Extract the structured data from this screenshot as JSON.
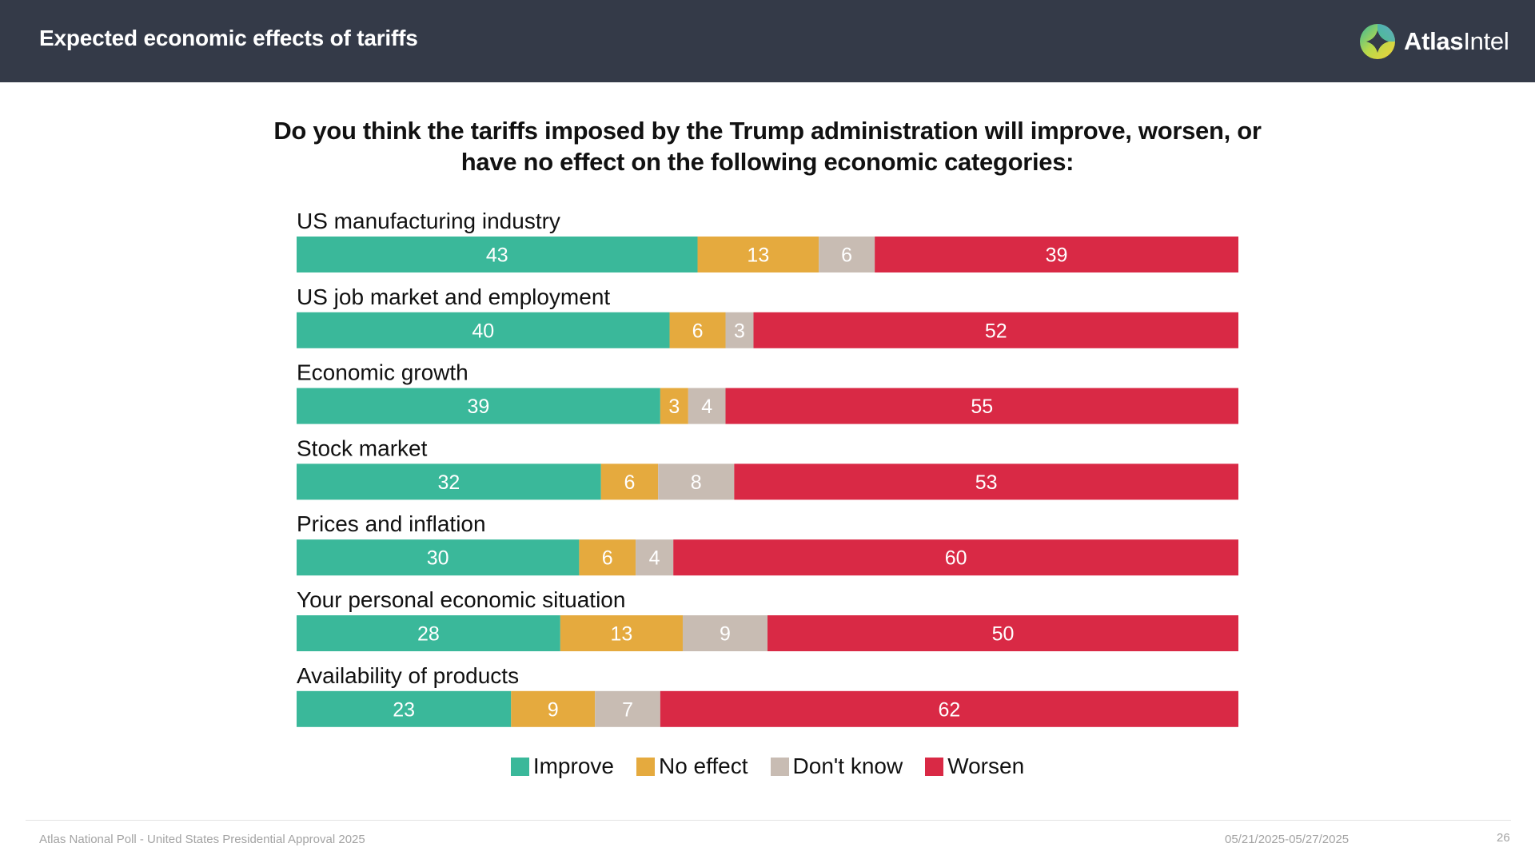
{
  "header": {
    "title": "Expected economic effects of tariffs",
    "logo_bold": "Atlas",
    "logo_light": "Intel"
  },
  "colors": {
    "header_bg": "#343a48",
    "improve": "#3ab89a",
    "no_effect": "#e5aa3e",
    "dont_know": "#c8bcb3",
    "worsen": "#d92945"
  },
  "chart_data": {
    "type": "bar",
    "orientation": "horizontal-stacked",
    "title": "Do you think the tariffs imposed by the Trump administration will improve, worsen, or have no effect on the following economic categories:",
    "title_line1": "Do you think the tariffs imposed by the Trump administration will improve, worsen, or",
    "title_line2": "have no effect on the following economic categories:",
    "categories": [
      "US manufacturing industry",
      "US job market and employment",
      "Economic growth",
      "Stock market",
      "Prices and inflation",
      "Your personal economic situation",
      "Availability of products"
    ],
    "series": [
      {
        "name": "Improve",
        "key": "improve",
        "values": [
          43,
          40,
          39,
          32,
          30,
          28,
          23
        ]
      },
      {
        "name": "No effect",
        "key": "no_effect",
        "values": [
          13,
          6,
          3,
          6,
          6,
          13,
          9
        ]
      },
      {
        "name": "Don't know",
        "key": "dont_know",
        "values": [
          6,
          3,
          4,
          8,
          4,
          9,
          7
        ]
      },
      {
        "name": "Worsen",
        "key": "worsen",
        "values": [
          39,
          52,
          55,
          53,
          60,
          50,
          62
        ]
      }
    ],
    "xlim": [
      0,
      100
    ],
    "legend": "bottom-center",
    "grid": false
  },
  "footer": {
    "source": "Atlas National Poll - United States Presidential Approval 2025",
    "dates": "05/21/2025-05/27/2025",
    "page": "26"
  }
}
